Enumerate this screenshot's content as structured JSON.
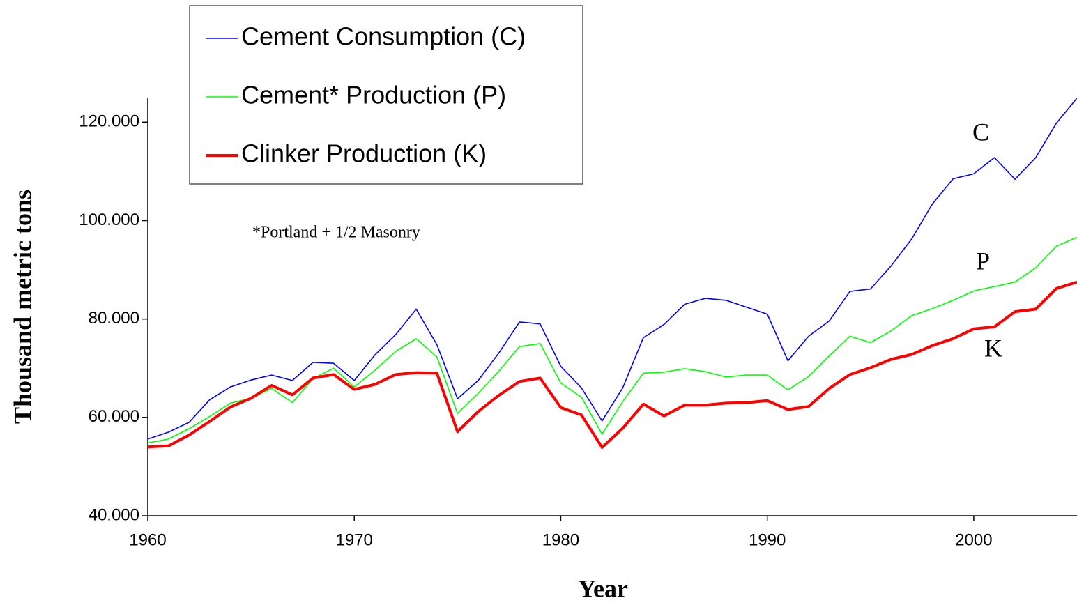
{
  "chart_data": {
    "type": "line",
    "xlabel": "Year",
    "ylabel": "Thousand metric tons",
    "x": [
      1960,
      1961,
      1962,
      1963,
      1964,
      1965,
      1966,
      1967,
      1968,
      1969,
      1970,
      1971,
      1972,
      1973,
      1974,
      1975,
      1976,
      1977,
      1978,
      1979,
      1980,
      1981,
      1982,
      1983,
      1984,
      1985,
      1986,
      1987,
      1988,
      1989,
      1990,
      1991,
      1992,
      1993,
      1994,
      1995,
      1996,
      1997,
      1998,
      1999,
      2000,
      2001,
      2002,
      2003,
      2004,
      2005
    ],
    "series": [
      {
        "name": "Cement Consumption (C)",
        "color": "#0000ff",
        "values": [
          55600,
          57000,
          59000,
          63600,
          66200,
          67600,
          68600,
          67500,
          71200,
          71000,
          67500,
          72700,
          76800,
          82000,
          74800,
          63800,
          67500,
          73100,
          79400,
          79000,
          70400,
          66000,
          59300,
          66000,
          76200,
          78900,
          83000,
          84200,
          83800,
          82400,
          81000,
          71500,
          76500,
          79600,
          85600,
          86100,
          90800,
          96300,
          103400,
          108500,
          109500,
          112800,
          108400,
          112800,
          119800,
          124900
        ]
      },
      {
        "name": "Cement* Production (P)",
        "color": "#00ff00",
        "values": [
          54800,
          55600,
          57700,
          60200,
          62900,
          63900,
          65900,
          63000,
          67900,
          70000,
          66200,
          69600,
          73400,
          76000,
          72300,
          60800,
          64900,
          69400,
          74400,
          75000,
          67000,
          64100,
          56600,
          63200,
          69000,
          69200,
          69900,
          69300,
          68200,
          68600,
          68600,
          65600,
          68300,
          72500,
          76500,
          75200,
          77600,
          80700,
          82100,
          83800,
          85700,
          86600,
          87500,
          90400,
          94800,
          96600
        ]
      },
      {
        "name": "Clinker Production (K)",
        "color": "#ff0000",
        "values": [
          54000,
          54200,
          56400,
          59200,
          62100,
          63900,
          66500,
          64600,
          68000,
          68700,
          65700,
          66700,
          68700,
          69100,
          69000,
          57100,
          61200,
          64500,
          67300,
          68000,
          62000,
          60500,
          53900,
          57800,
          62700,
          60300,
          62500,
          62500,
          62900,
          63000,
          63400,
          61600,
          62200,
          65900,
          68700,
          70100,
          71800,
          72800,
          74600,
          76000,
          78000,
          78400,
          81500,
          82000,
          86200,
          87500
        ]
      }
    ],
    "xlim": [
      1960,
      2005
    ],
    "xticks": [
      1960,
      1970,
      1980,
      1990,
      2000
    ],
    "ylim": [
      40000,
      125000
    ],
    "yticks": [
      {
        "value": 40000,
        "label": "40.000"
      },
      {
        "value": 60000,
        "label": "60.000"
      },
      {
        "value": 80000,
        "label": "80.000"
      },
      {
        "value": 100000,
        "label": "100.000"
      },
      {
        "value": 120000,
        "label": "120.000"
      }
    ],
    "annotations": [
      "C",
      "P",
      "K",
      "*Portland + 1/2 Masonry"
    ],
    "legend": "upper left"
  }
}
